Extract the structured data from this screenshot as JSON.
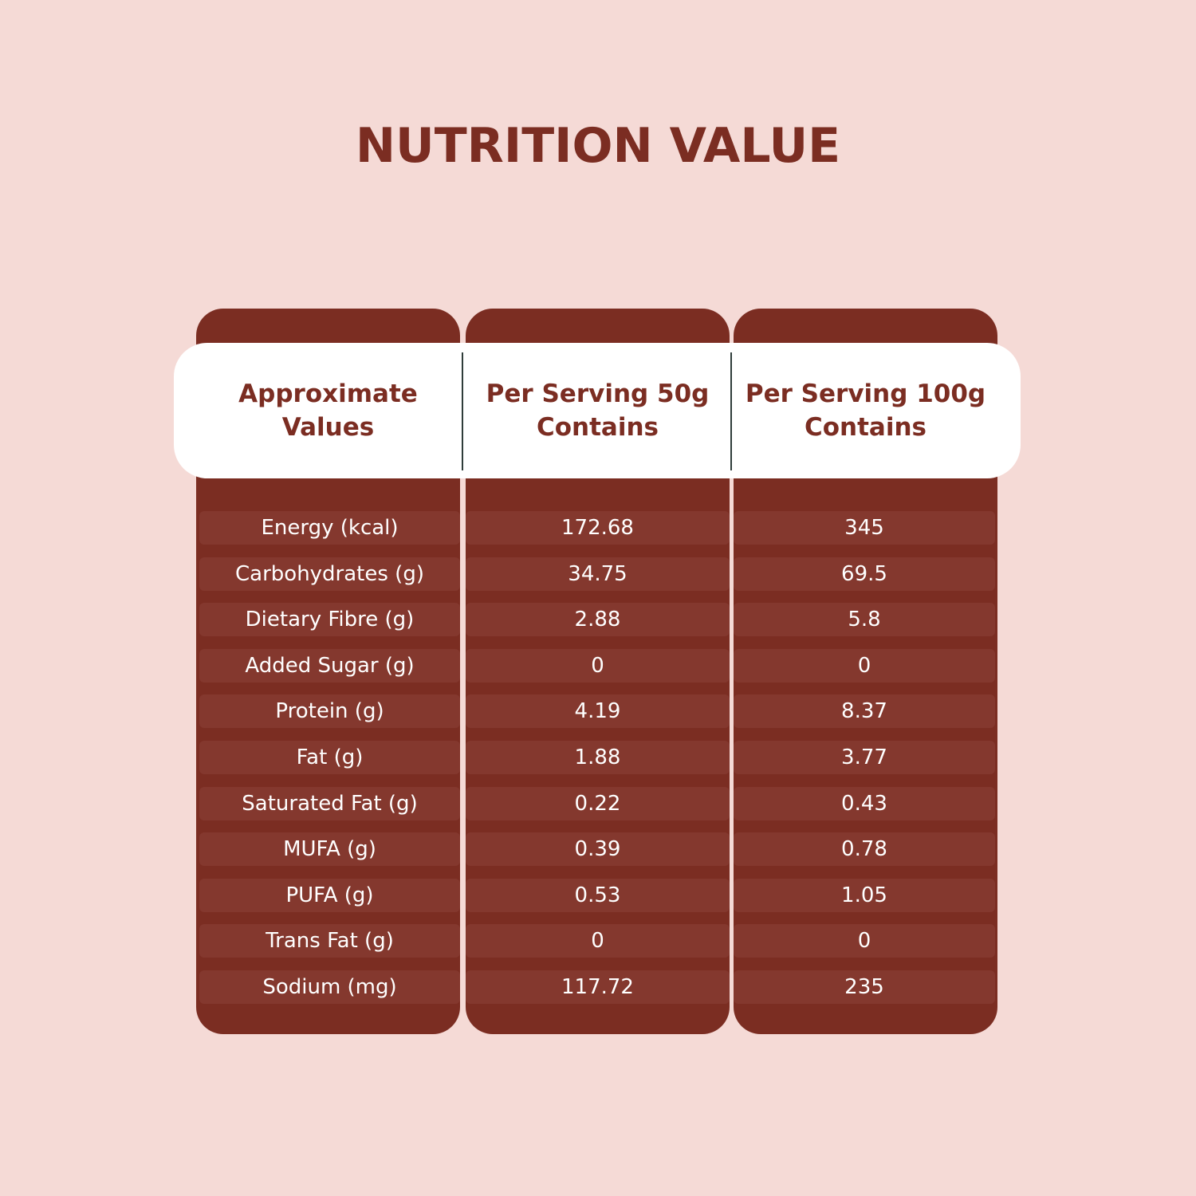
{
  "title": "NUTRITION VALUE",
  "headers": [
    "Approximate\nValues",
    "Per Serving 50g\nContains",
    "Per Serving 100g\nContains"
  ],
  "rows": [
    {
      "name": "Energy (kcal)",
      "per50": "172.68",
      "per100": "345"
    },
    {
      "name": "Carbohydrates (g)",
      "per50": "34.75",
      "per100": "69.5"
    },
    {
      "name": "Dietary Fibre (g)",
      "per50": "2.88",
      "per100": "5.8"
    },
    {
      "name": "Added Sugar (g)",
      "per50": "0",
      "per100": "0"
    },
    {
      "name": "Protein (g)",
      "per50": "4.19",
      "per100": "8.37"
    },
    {
      "name": "Fat (g)",
      "per50": "1.88",
      "per100": "3.77"
    },
    {
      "name": "Saturated Fat (g)",
      "per50": "0.22",
      "per100": "0.43"
    },
    {
      "name": "MUFA (g)",
      "per50": "0.39",
      "per100": "0.78"
    },
    {
      "name": "PUFA (g)",
      "per50": "0.53",
      "per100": "1.05"
    },
    {
      "name": "Trans Fat (g)",
      "per50": "0",
      "per100": "0"
    },
    {
      "name": "Sodium (mg)",
      "per50": "117.72",
      "per100": "235"
    }
  ],
  "colors": {
    "background": "#f5dad6",
    "column": "#7b2d22",
    "row_band": "#84382e",
    "header_band": "#ffffff",
    "accent_text": "#7b2d22",
    "cell_text": "#ffffff"
  }
}
